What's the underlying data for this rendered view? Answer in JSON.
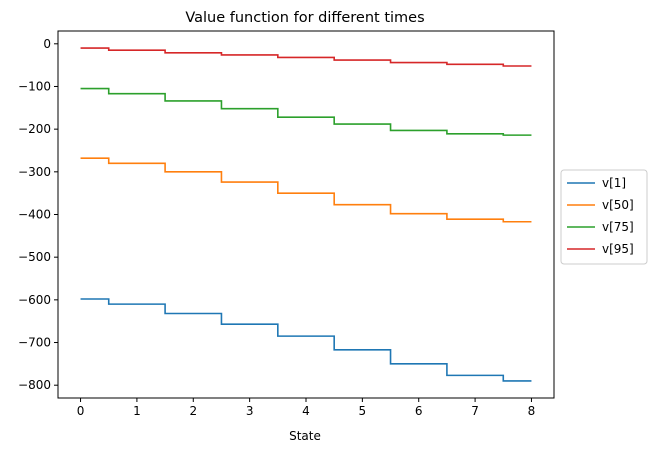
{
  "chart_data": {
    "type": "line",
    "title": "Value function for different times",
    "xlabel": "State",
    "ylabel": "",
    "xlim": [
      -0.4,
      8.4
    ],
    "ylim": [
      -830,
      30
    ],
    "xticks": [
      0,
      1,
      2,
      3,
      4,
      5,
      6,
      7,
      8
    ],
    "yticks": [
      0,
      -100,
      -200,
      -300,
      -400,
      -500,
      -600,
      -700,
      -800
    ],
    "ytick_labels": [
      "0",
      "−100",
      "−200",
      "−300",
      "−400",
      "−500",
      "−600",
      "−700",
      "−800"
    ],
    "step_where": "mid",
    "x": [
      0,
      1,
      2,
      3,
      4,
      5,
      6,
      7,
      8
    ],
    "grid": false,
    "legend_position": "outside-right",
    "series": [
      {
        "name": "v[1]",
        "color": "#1f77b4",
        "values": [
          -598,
          -610,
          -632,
          -657,
          -685,
          -717,
          -750,
          -777,
          -790
        ]
      },
      {
        "name": "v[50]",
        "color": "#ff7f0e",
        "values": [
          -268,
          -280,
          -300,
          -324,
          -350,
          -377,
          -398,
          -411,
          -417
        ]
      },
      {
        "name": "v[75]",
        "color": "#2ca02c",
        "values": [
          -105,
          -117,
          -134,
          -152,
          -172,
          -188,
          -203,
          -211,
          -214
        ]
      },
      {
        "name": "v[95]",
        "color": "#d62728",
        "values": [
          -10,
          -15,
          -21,
          -26,
          -32,
          -38,
          -44,
          -48,
          -52
        ]
      }
    ]
  }
}
